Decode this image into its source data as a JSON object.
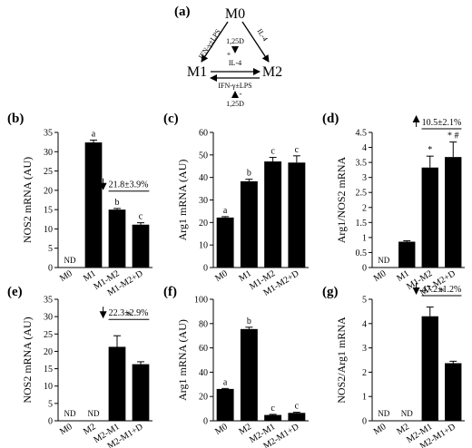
{
  "diagram": {
    "label": "(a)",
    "nodes": {
      "m0": "M0",
      "m1": "M1",
      "m2": "M2"
    },
    "edges": {
      "m0_m1": "IFN-γ±LPS",
      "m0_m2": "IL-4",
      "m1_m2_top": "1,25D",
      "m1_m2_plus": "+",
      "m1_m2_bottom": "IL-4",
      "m2_m1": "IFN-γ±LPS",
      "m2_m1_minus": "-",
      "m2_m1_bottom": "1,25D"
    }
  },
  "chart_data": [
    {
      "id": "b",
      "label": "(b)",
      "type": "bar",
      "ylabel": "NOS2 mRNA (AU)",
      "ylim": [
        0,
        35
      ],
      "yticks": [
        0,
        5,
        10,
        15,
        20,
        25,
        30,
        35
      ],
      "categories": [
        "M0",
        "M1",
        "M1-M2",
        "M1-M2+D"
      ],
      "values": [
        null,
        32.4,
        15.0,
        11.1
      ],
      "errors": [
        0,
        0.6,
        0.3,
        0.5
      ],
      "value_labels": [
        "ND",
        "",
        "",
        ""
      ],
      "letters": [
        "",
        "a",
        "b",
        "c"
      ],
      "marks": [
        "",
        "",
        "",
        ""
      ],
      "annotation": {
        "text": "21.8±3.9%",
        "arrow": "down",
        "from": 2,
        "to": 3
      }
    },
    {
      "id": "c",
      "label": "(c)",
      "type": "bar",
      "ylabel": "Arg1 mRNA (AU)",
      "ylim": [
        0,
        60
      ],
      "yticks": [
        0,
        10,
        20,
        30,
        40,
        50,
        60
      ],
      "categories": [
        "M0",
        "M1",
        "M1-M2",
        "M1-M2+D"
      ],
      "values": [
        22.2,
        38.3,
        47.1,
        46.6
      ],
      "errors": [
        0.4,
        0.9,
        1.8,
        3.0
      ],
      "value_labels": [
        "",
        "",
        "",
        ""
      ],
      "letters": [
        "a",
        "b",
        "c",
        "c"
      ],
      "marks": [
        "",
        "",
        "",
        ""
      ],
      "annotation": null
    },
    {
      "id": "d",
      "label": "(d)",
      "type": "bar",
      "ylabel": "Arg1/NOS2 mRNA",
      "ylim": [
        0,
        4.5
      ],
      "yticks": [
        0,
        0.5,
        1,
        1.5,
        2,
        2.5,
        3,
        3.5,
        4,
        4.5
      ],
      "categories": [
        "M0",
        "M1",
        "M1-M2",
        "M1-M2+D"
      ],
      "values": [
        null,
        0.86,
        3.33,
        3.68
      ],
      "errors": [
        0,
        0.03,
        0.38,
        0.5
      ],
      "value_labels": [
        "ND",
        "",
        "",
        ""
      ],
      "letters": [
        "",
        "",
        "",
        ""
      ],
      "marks": [
        "",
        "",
        "*",
        "* #"
      ],
      "annotation": {
        "text": "10.5±2.1%",
        "arrow": "up",
        "from": 2,
        "to": 3
      }
    },
    {
      "id": "e",
      "label": "(e)",
      "type": "bar",
      "ylabel": "NOS2 mRNA (AU)",
      "ylim": [
        0,
        35
      ],
      "yticks": [
        0,
        5,
        10,
        15,
        20,
        25,
        30,
        35
      ],
      "categories": [
        "M0",
        "M2",
        "M2-M1",
        "M2-M1+D"
      ],
      "values": [
        null,
        null,
        21.3,
        16.3
      ],
      "errors": [
        0,
        0,
        3.2,
        0.7
      ],
      "value_labels": [
        "ND",
        "ND",
        "",
        ""
      ],
      "letters": [
        "",
        "",
        "",
        ""
      ],
      "marks": [
        "",
        "",
        "",
        ""
      ],
      "annotation": {
        "text": "22.3±2.9%",
        "arrow": "down",
        "from": 2,
        "to": 3,
        "star": "*"
      }
    },
    {
      "id": "f",
      "label": "(f)",
      "type": "bar",
      "ylabel": "Arg1 mRNA (AU)",
      "ylim": [
        0,
        100
      ],
      "yticks": [
        0,
        20,
        40,
        60,
        80,
        100
      ],
      "categories": [
        "M0",
        "M2",
        "M2-M1",
        "M2-M1+D"
      ],
      "values": [
        26.2,
        75.5,
        4.8,
        6.5
      ],
      "errors": [
        0.4,
        1.5,
        0.5,
        0.5
      ],
      "value_labels": [
        "",
        "",
        "",
        ""
      ],
      "letters": [
        "a",
        "b",
        "c",
        "c"
      ],
      "marks": [
        "",
        "",
        "",
        ""
      ],
      "annotation": null
    },
    {
      "id": "g",
      "label": "(g)",
      "type": "bar",
      "ylabel": "NOS2/Arg1 mRNA",
      "ylim": [
        0,
        5
      ],
      "yticks": [
        0,
        1,
        2,
        3,
        4,
        5
      ],
      "categories": [
        "M0",
        "M2",
        "M2-M1",
        "M2-M1+D"
      ],
      "values": [
        null,
        null,
        4.3,
        2.37
      ],
      "errors": [
        0,
        0,
        0.38,
        0.08
      ],
      "value_labels": [
        "ND",
        "ND",
        "",
        ""
      ],
      "letters": [
        "",
        "",
        "",
        ""
      ],
      "marks": [
        "",
        "",
        "",
        ""
      ],
      "annotation": {
        "text": "47.2±1.2%",
        "arrow": "down",
        "from": 2,
        "to": 3,
        "star": "*"
      }
    }
  ]
}
